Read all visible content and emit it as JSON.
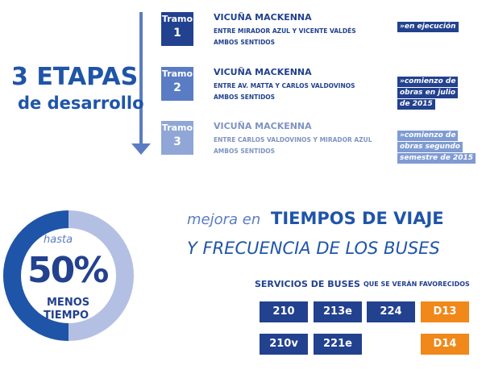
{
  "header": {
    "big": "3 ETAPAS",
    "sub": "de desarrollo"
  },
  "tramos": [
    {
      "tag": "Tramo",
      "num": "1",
      "title": "VICUÑA MACKENNA",
      "line1": "ENTRE MIRADOR AZUL Y VICENTE VALDÉS",
      "line2": "AMBOS SENTIDOS",
      "status": [
        "»en ejecución"
      ]
    },
    {
      "tag": "Tramo",
      "num": "2",
      "title": "VICUÑA MACKENNA",
      "line1": "ENTRE AV. MATTA Y CARLOS VALDOVINOS",
      "line2": "AMBOS SENTIDOS",
      "status": [
        "»comienzo de",
        "obras en julio",
        "de 2015"
      ]
    },
    {
      "tag": "Tramo",
      "num": "3",
      "title": "VICUÑA MACKENNA",
      "line1": "ENTRE CARLOS VALDOVINOS Y MIRADOR AZUL",
      "line2": "AMBOS SENTIDOS",
      "status": [
        "»comienzo de",
        "obras segundo",
        "semestre de 2015"
      ]
    }
  ],
  "donut": {
    "top": "hasta",
    "value": 50,
    "label": "50%",
    "bottom1": "MENOS",
    "bottom2": "TIEMPO"
  },
  "mejora": {
    "pre": "mejora en",
    "line1": "TIEMPOS DE VIAJE",
    "line2": "Y FRECUENCIA DE LOS BUSES"
  },
  "servicios": {
    "title": "SERVICIOS DE BUSES",
    "note": "QUE SE VERÁN FAVORECIDOS",
    "rows": [
      [
        "210",
        "213e",
        "224",
        "D13"
      ],
      [
        "210v",
        "221e",
        null,
        "D14"
      ]
    ]
  }
}
